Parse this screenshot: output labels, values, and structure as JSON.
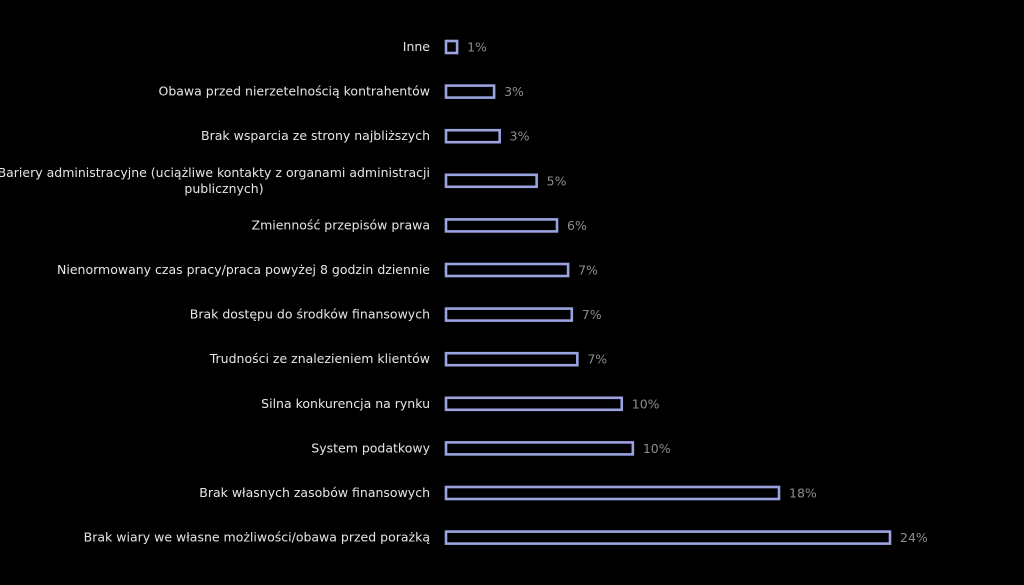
{
  "chart_data": {
    "type": "bar",
    "orientation": "horizontal",
    "bar_outline_color": "#9aa3e0",
    "background_color": "#000000",
    "categories": [
      [
        "Inne"
      ],
      [
        "Obawa przed nierzetelnością kontrahentów"
      ],
      [
        "Brak wsparcia ze strony najbliższych"
      ],
      [
        "Bariery administracyjne (uciążliwe kontakty z organami administracji",
        "publicznych)"
      ],
      [
        "Zmienność przepisów prawa"
      ],
      [
        "Nienormowany czas pracy/praca powyżej 8 godzin dziennie"
      ],
      [
        "Brak dostępu do środków finansowych"
      ],
      [
        "Trudności ze znalezieniem klientów"
      ],
      [
        "Silna konkurencja na rynku"
      ],
      [
        "System podatkowy"
      ],
      [
        "Brak własnych zasobów finansowych"
      ],
      [
        "Brak wiary we własne możliwości/obawa przed porażką"
      ]
    ],
    "values": [
      0.6,
      2.6,
      2.9,
      4.9,
      6.0,
      6.6,
      6.8,
      7.1,
      9.5,
      10.1,
      18.0,
      24.0
    ],
    "value_labels": [
      "1%",
      "3%",
      "3%",
      "5%",
      "6%",
      "7%",
      "7%",
      "7%",
      "10%",
      "10%",
      "18%",
      "24%"
    ],
    "xlim": [
      0,
      24
    ]
  }
}
